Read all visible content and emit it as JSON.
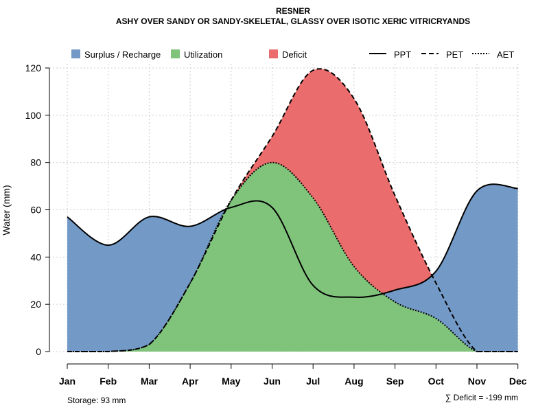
{
  "chart_data": {
    "type": "area",
    "title": "RESNER",
    "subtitle": "ASHY OVER SANDY OR SANDY-SKELETAL, GLASSY OVER ISOTIC XERIC VITRICRYANDS",
    "xlabel": "",
    "ylabel": "Water (mm)",
    "ylim": [
      0,
      120
    ],
    "yticks": [
      0,
      20,
      40,
      60,
      80,
      100,
      120
    ],
    "grid": true,
    "categories": [
      "Jan",
      "Feb",
      "Mar",
      "Apr",
      "May",
      "Jun",
      "Jul",
      "Aug",
      "Sep",
      "Oct",
      "Nov",
      "Dec"
    ],
    "series": [
      {
        "name": "PPT",
        "style": "solid",
        "values": [
          57,
          45,
          57,
          53,
          61,
          61,
          28,
          23,
          26,
          34,
          68,
          69
        ]
      },
      {
        "name": "PET",
        "style": "dashed",
        "values": [
          0,
          0,
          3,
          29,
          64,
          91,
          119,
          107,
          66,
          29,
          0,
          0
        ]
      },
      {
        "name": "AET",
        "style": "dotted",
        "values": [
          0,
          0,
          3,
          29,
          64,
          80,
          65,
          36,
          21,
          14,
          0,
          0
        ]
      }
    ],
    "legend": {
      "placement": "top",
      "fill_items": [
        {
          "label": "Surplus / Recharge",
          "color": "#7399c6"
        },
        {
          "label": "Utilization",
          "color": "#80c47c"
        },
        {
          "label": "Deficit",
          "color": "#eb6c6c"
        }
      ],
      "line_items": [
        {
          "label": "PPT",
          "style": "solid"
        },
        {
          "label": "PET",
          "style": "dashed"
        },
        {
          "label": "AET",
          "style": "dotted"
        }
      ]
    },
    "annotations": {
      "storage": "Storage: 93 mm",
      "deficit": "∑ Deficit = -199 mm"
    },
    "colors": {
      "surplus": "#7399c6",
      "utilization": "#80c47c",
      "deficit": "#eb6c6c",
      "line": "#000000",
      "grid": "#cccccc"
    }
  }
}
